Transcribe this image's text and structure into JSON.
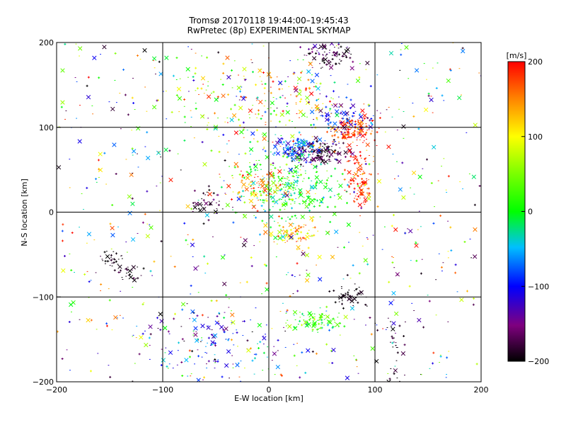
{
  "chart_data": {
    "type": "scatter",
    "title": "Tromsø 20170118 19:44:00–19:45:43",
    "subtitle": "RwPretec (8p) EXPERIMENTAL SKYMAP",
    "xlabel": "E-W location [km]",
    "ylabel": "N-S location [km]",
    "xlim": [
      -200,
      200
    ],
    "ylim": [
      -200,
      200
    ],
    "xticks": [
      -200,
      -100,
      0,
      100,
      200
    ],
    "yticks": [
      -200,
      -100,
      0,
      100,
      200
    ],
    "grid": true,
    "colorbar": {
      "label": "[m/s]",
      "min": -200,
      "max": 200,
      "ticks": [
        200,
        100,
        0,
        -100,
        -200
      ],
      "colormap": "rainbow (black → purple → blue → cyan → green → yellow → red)"
    },
    "clusters": [
      {
        "x": 45,
        "y": 70,
        "sx": 14,
        "sy": 7,
        "n": 160,
        "v": -180,
        "vs": 25
      },
      {
        "x": 25,
        "y": 75,
        "sx": 12,
        "sy": 6,
        "n": 110,
        "v": -80,
        "vs": 30
      },
      {
        "x": 78,
        "y": 95,
        "sx": 10,
        "sy": 8,
        "n": 130,
        "v": 185,
        "vs": 25
      },
      {
        "x": 70,
        "y": 110,
        "sx": 14,
        "sy": 10,
        "n": 90,
        "v": -110,
        "vs": 40
      },
      {
        "x": 85,
        "y": 40,
        "sx": 7,
        "sy": 18,
        "n": 110,
        "v": 185,
        "vs": 20
      },
      {
        "x": 20,
        "y": 30,
        "sx": 25,
        "sy": 22,
        "n": 320,
        "v": 5,
        "vs": 30
      },
      {
        "x": -10,
        "y": 30,
        "sx": 14,
        "sy": 10,
        "n": 90,
        "v": 150,
        "vs": 40
      },
      {
        "x": 25,
        "y": -25,
        "sx": 12,
        "sy": 10,
        "n": 80,
        "v": 130,
        "vs": 40
      },
      {
        "x": 55,
        "y": 185,
        "sx": 12,
        "sy": 8,
        "n": 90,
        "v": -175,
        "vs": 30
      },
      {
        "x": 45,
        "y": -128,
        "sx": 14,
        "sy": 6,
        "n": 90,
        "v": 30,
        "vs": 30
      },
      {
        "x": 75,
        "y": -100,
        "sx": 8,
        "sy": 8,
        "n": 50,
        "v": -195,
        "vs": 5
      },
      {
        "x": -60,
        "y": 10,
        "sx": 8,
        "sy": 8,
        "n": 40,
        "v": -190,
        "vs": 20
      },
      {
        "x": -150,
        "y": -55,
        "sx": 6,
        "sy": 4,
        "n": 30,
        "v": -195,
        "vs": 10
      },
      {
        "x": -130,
        "y": -70,
        "sx": 8,
        "sy": 5,
        "n": 25,
        "v": -190,
        "vs": 10
      },
      {
        "x": 115,
        "y": -165,
        "sx": 6,
        "sy": 20,
        "n": 35,
        "v": -190,
        "vs": 20
      },
      {
        "x": -50,
        "y": -150,
        "sx": 35,
        "sy": 25,
        "n": 140,
        "v": -100,
        "vs": 60
      },
      {
        "x": -40,
        "y": 130,
        "sx": 35,
        "sy": 30,
        "n": 120,
        "v": 60,
        "vs": 90
      },
      {
        "x": 30,
        "y": 130,
        "sx": 30,
        "sy": 20,
        "n": 110,
        "v": 60,
        "vs": 90
      }
    ],
    "background_points": {
      "n": 650,
      "x_range": [
        -200,
        200
      ],
      "y_range": [
        -200,
        200
      ],
      "v_range": [
        -200,
        200
      ]
    },
    "markers": [
      "x",
      "+"
    ]
  }
}
